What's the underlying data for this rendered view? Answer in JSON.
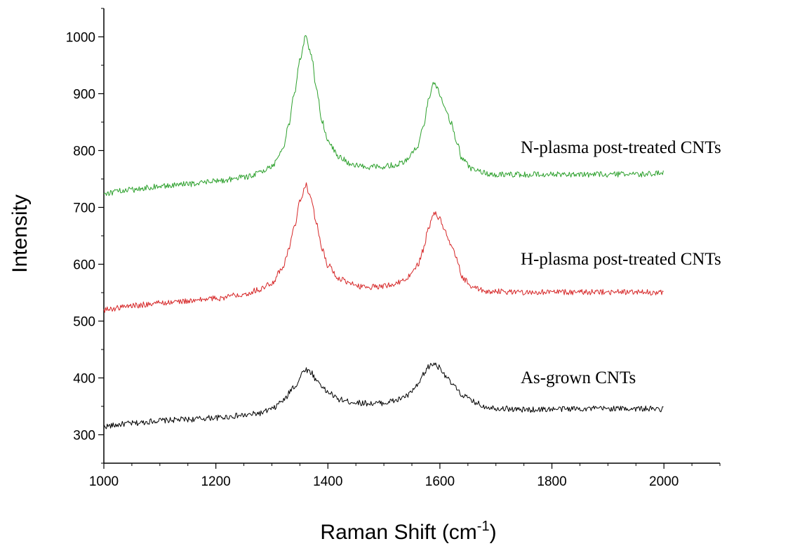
{
  "chart_data": {
    "type": "line",
    "title": "",
    "xlabel": "Raman Shift (cm",
    "xlabel_superscript": "-1",
    "xlabel_suffix": ")",
    "ylabel": "Intensity",
    "xlim": [
      1000,
      2100
    ],
    "ylim": [
      250,
      1050
    ],
    "xticks": [
      1000,
      1200,
      1400,
      1600,
      1800,
      2000
    ],
    "yticks": [
      300,
      400,
      500,
      600,
      700,
      800,
      900,
      1000
    ],
    "grid": false,
    "legend": "inline-labels-right",
    "series": [
      {
        "name": "As-grown CNTs",
        "color": "#000000",
        "label": "As-grown CNTs",
        "x": [
          1000,
          1050,
          1100,
          1150,
          1200,
          1250,
          1280,
          1300,
          1320,
          1340,
          1360,
          1370,
          1380,
          1400,
          1420,
          1440,
          1460,
          1480,
          1500,
          1520,
          1540,
          1560,
          1570,
          1580,
          1590,
          1600,
          1610,
          1620,
          1640,
          1660,
          1680,
          1700,
          1750,
          1800,
          1850,
          1900,
          1950,
          2000
        ],
        "y": [
          315,
          320,
          325,
          327,
          330,
          334,
          338,
          345,
          360,
          385,
          415,
          410,
          395,
          375,
          362,
          358,
          356,
          355,
          356,
          360,
          368,
          385,
          405,
          420,
          425,
          418,
          405,
          390,
          370,
          358,
          350,
          347,
          344,
          345,
          346,
          346,
          346,
          345
        ]
      },
      {
        "name": "H-plasma post-treated CNTs",
        "color": "#d62728",
        "label": "H-plasma post-treated CNTs",
        "x": [
          1000,
          1050,
          1100,
          1150,
          1200,
          1250,
          1280,
          1300,
          1320,
          1330,
          1340,
          1350,
          1360,
          1370,
          1380,
          1390,
          1400,
          1420,
          1440,
          1460,
          1480,
          1500,
          1520,
          1540,
          1560,
          1570,
          1580,
          1590,
          1600,
          1610,
          1620,
          1630,
          1640,
          1660,
          1680,
          1700,
          1750,
          1800,
          1850,
          1900,
          1950,
          2000
        ],
        "y": [
          520,
          527,
          532,
          535,
          540,
          548,
          556,
          568,
          595,
          625,
          665,
          710,
          740,
          715,
          670,
          625,
          598,
          575,
          565,
          561,
          560,
          562,
          566,
          575,
          598,
          625,
          665,
          690,
          680,
          655,
          635,
          608,
          575,
          558,
          553,
          552,
          551,
          551,
          551,
          551,
          551,
          550
        ]
      },
      {
        "name": "N-plasma post-treated CNTs",
        "color": "#2ca02c",
        "label": "N-plasma post-treated CNTs",
        "x": [
          1000,
          1050,
          1100,
          1150,
          1200,
          1250,
          1280,
          1300,
          1320,
          1330,
          1340,
          1350,
          1360,
          1370,
          1380,
          1390,
          1400,
          1420,
          1440,
          1460,
          1480,
          1500,
          1520,
          1540,
          1560,
          1570,
          1580,
          1590,
          1600,
          1610,
          1620,
          1630,
          1640,
          1660,
          1680,
          1700,
          1750,
          1800,
          1850,
          1900,
          1950,
          2000
        ],
        "y": [
          725,
          731,
          737,
          741,
          746,
          753,
          761,
          772,
          805,
          845,
          900,
          960,
          1000,
          970,
          905,
          850,
          815,
          790,
          776,
          772,
          771,
          772,
          775,
          782,
          805,
          840,
          890,
          920,
          900,
          875,
          850,
          815,
          785,
          766,
          760,
          758,
          758,
          758,
          758,
          758,
          758,
          760
        ]
      }
    ]
  }
}
